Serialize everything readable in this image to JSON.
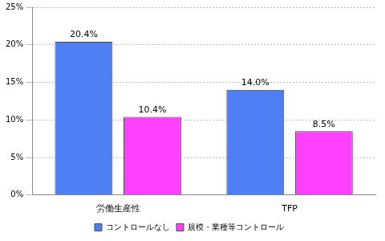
{
  "chart_data": {
    "type": "bar",
    "categories": [
      "労働生産性",
      "TFP"
    ],
    "series": [
      {
        "name": "コントロールなし",
        "color": "#4f7ff5",
        "values": [
          20.4,
          14.0
        ],
        "value_labels": [
          "20.4%",
          "14.0%"
        ]
      },
      {
        "name": "規模・業種等コントロール",
        "color": "#ff40ff",
        "values": [
          10.4,
          8.5
        ],
        "value_labels": [
          "10.4%",
          "8.5%"
        ]
      }
    ],
    "ylim": [
      0,
      25
    ],
    "yticks": [
      {
        "value": 0,
        "label": "0%"
      },
      {
        "value": 5,
        "label": "5%"
      },
      {
        "value": 10,
        "label": "10%"
      },
      {
        "value": 15,
        "label": "15%"
      },
      {
        "value": 20,
        "label": "20%"
      },
      {
        "value": 25,
        "label": "25%"
      }
    ],
    "grid": true,
    "legend": "bottom",
    "data_labels": true
  }
}
